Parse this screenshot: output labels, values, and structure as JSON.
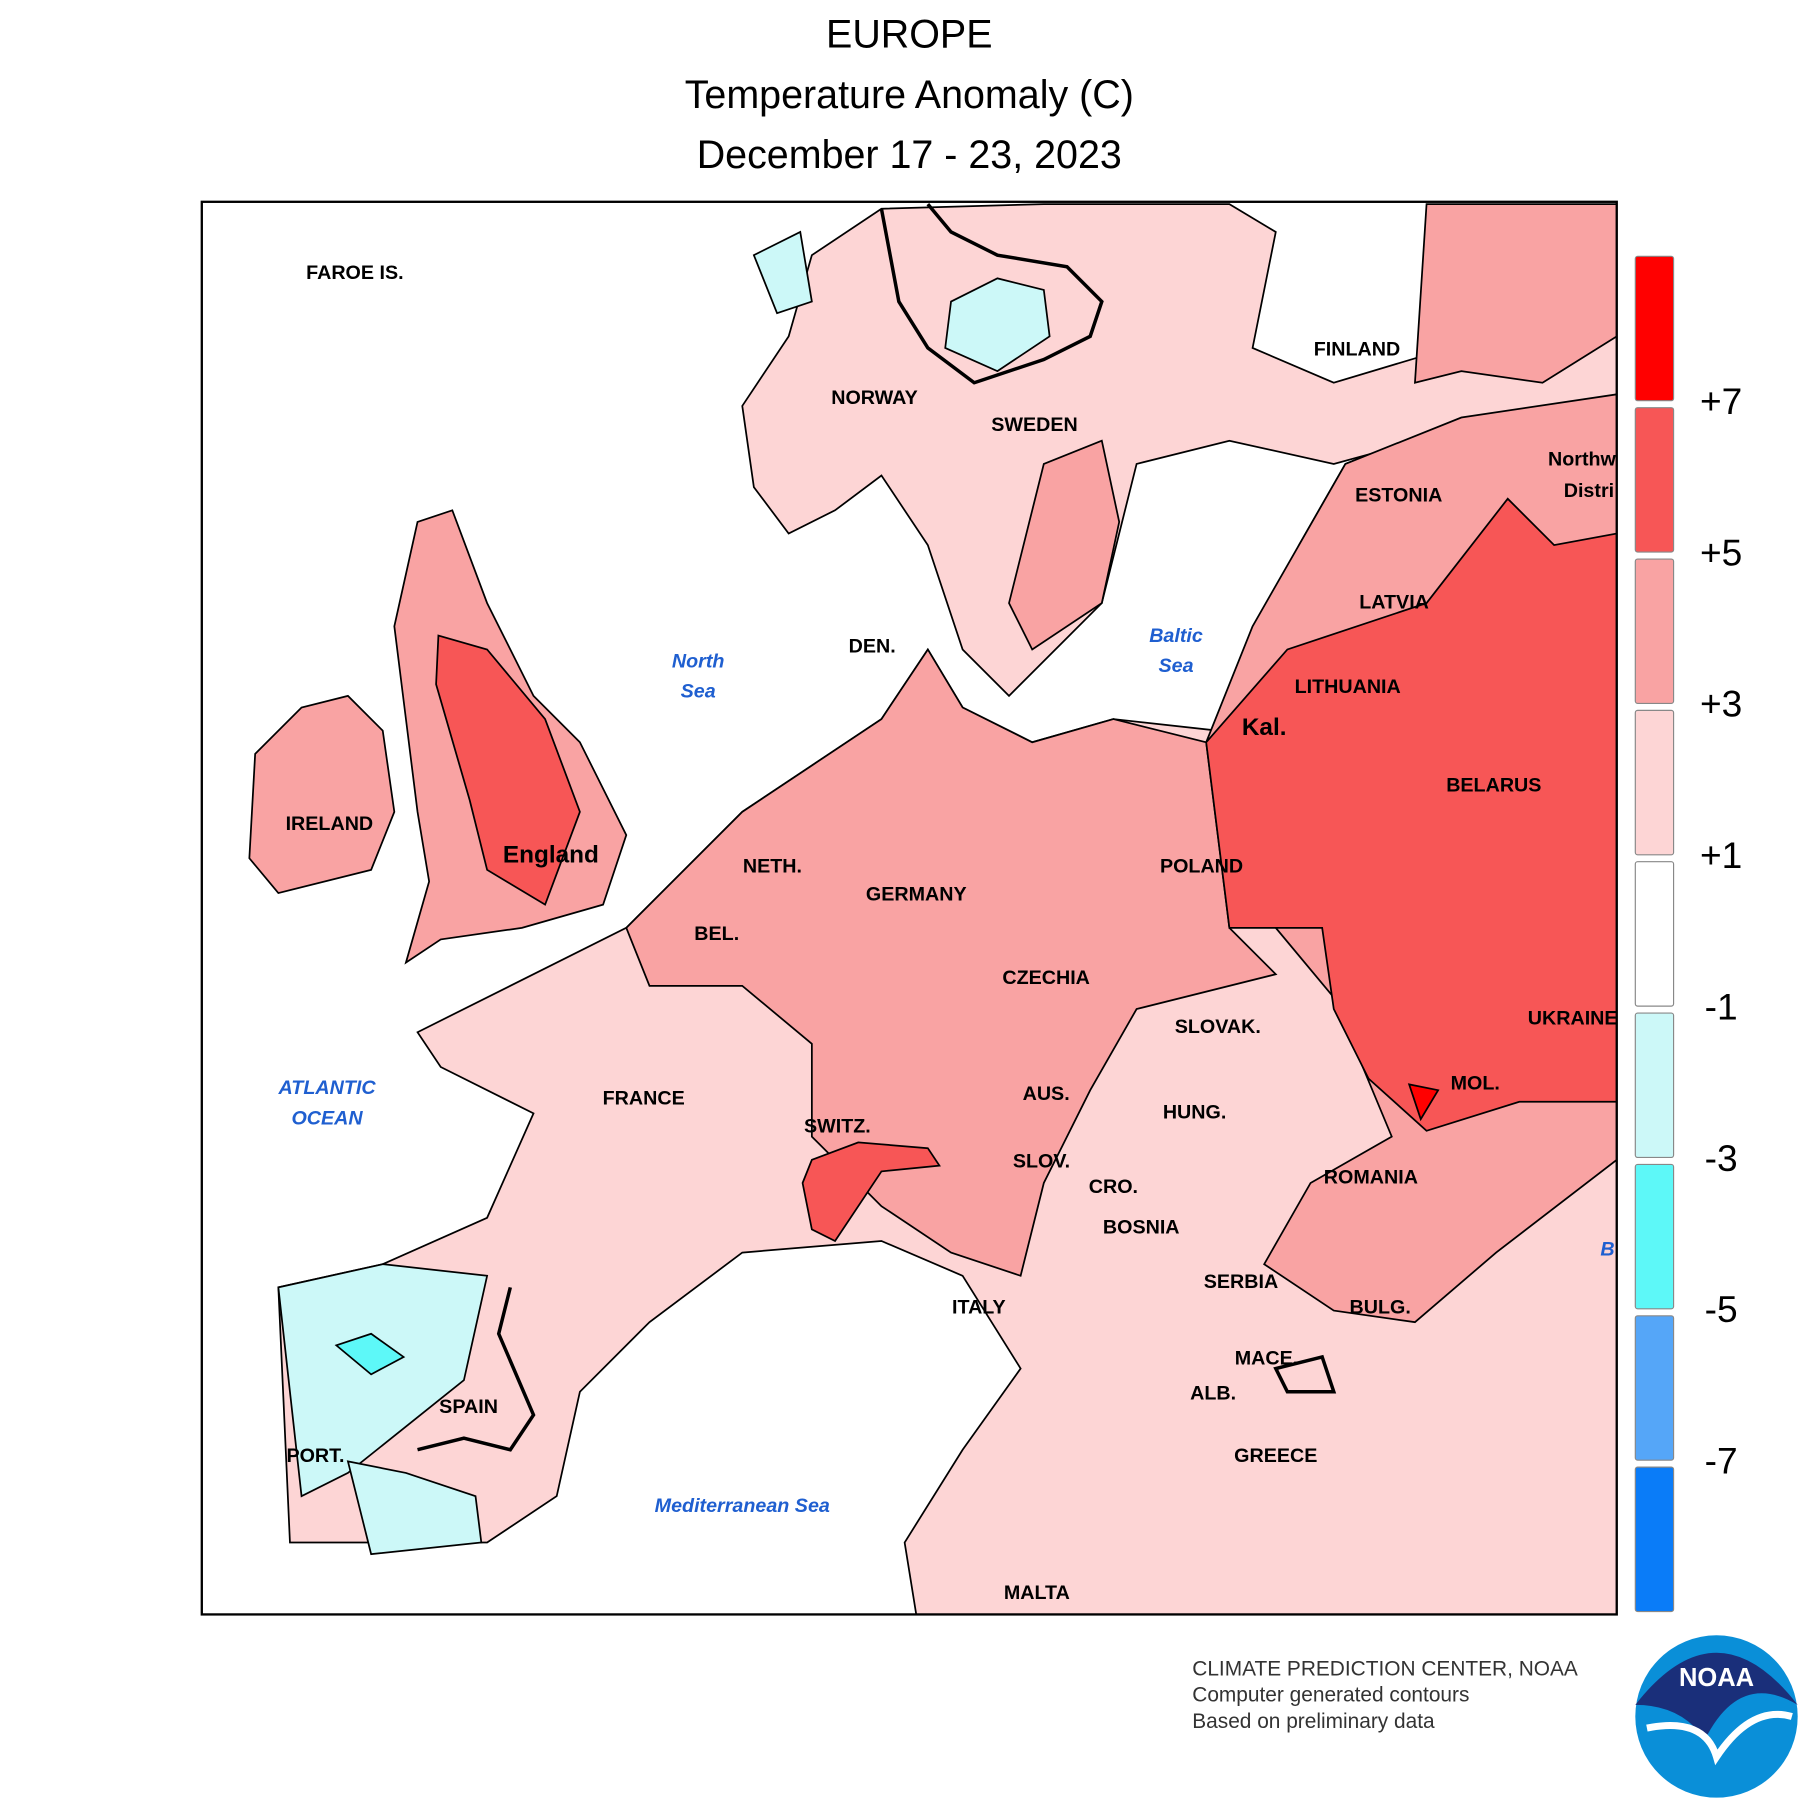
{
  "header": {
    "title": "EUROPE",
    "subtitle": "Temperature Anomaly (C)",
    "period": "December 17 - 23, 2023"
  },
  "map": {
    "labels": [
      {
        "text": "FAROE IS.",
        "kind": "country"
      },
      {
        "text": "NORWAY",
        "kind": "country"
      },
      {
        "text": "SWEDEN",
        "kind": "country"
      },
      {
        "text": "FINLAND",
        "kind": "country"
      },
      {
        "text": "ESTONIA",
        "kind": "country"
      },
      {
        "text": "Northw",
        "kind": "country"
      },
      {
        "text": "Distri",
        "kind": "country"
      },
      {
        "text": "LATVIA",
        "kind": "country"
      },
      {
        "text": "LITHUANIA",
        "kind": "country"
      },
      {
        "text": "Kal.",
        "kind": "major"
      },
      {
        "text": "BELARUS",
        "kind": "country"
      },
      {
        "text": "POLAND",
        "kind": "country"
      },
      {
        "text": "DEN.",
        "kind": "country"
      },
      {
        "text": "England",
        "kind": "major"
      },
      {
        "text": "IRELAND",
        "kind": "country"
      },
      {
        "text": "NETH.",
        "kind": "country"
      },
      {
        "text": "GERMANY",
        "kind": "country"
      },
      {
        "text": "BEL.",
        "kind": "country"
      },
      {
        "text": "CZECHIA",
        "kind": "country"
      },
      {
        "text": "SLOVAK.",
        "kind": "country"
      },
      {
        "text": "UKRAINE",
        "kind": "country"
      },
      {
        "text": "MOL.",
        "kind": "country"
      },
      {
        "text": "FRANCE",
        "kind": "country"
      },
      {
        "text": "AUS.",
        "kind": "country"
      },
      {
        "text": "HUNG.",
        "kind": "country"
      },
      {
        "text": "SWITZ.",
        "kind": "country"
      },
      {
        "text": "SLOV.",
        "kind": "country"
      },
      {
        "text": "CRO.",
        "kind": "country"
      },
      {
        "text": "ROMANIA",
        "kind": "country"
      },
      {
        "text": "BOSNIA",
        "kind": "country"
      },
      {
        "text": "SERBIA",
        "kind": "country"
      },
      {
        "text": "ITALY",
        "kind": "country"
      },
      {
        "text": "BULG.",
        "kind": "country"
      },
      {
        "text": "MACE.",
        "kind": "country"
      },
      {
        "text": "ALB.",
        "kind": "country"
      },
      {
        "text": "SPAIN",
        "kind": "country"
      },
      {
        "text": "PORT.",
        "kind": "country"
      },
      {
        "text": "GREECE",
        "kind": "country"
      },
      {
        "text": "MALTA",
        "kind": "country"
      },
      {
        "text": "North",
        "kind": "water"
      },
      {
        "text": "Sea",
        "kind": "water"
      },
      {
        "text": "Baltic",
        "kind": "water"
      },
      {
        "text": "Sea",
        "kind": "water"
      },
      {
        "text": "ATLANTIC",
        "kind": "water"
      },
      {
        "text": "OCEAN",
        "kind": "water"
      },
      {
        "text": "Mediterranean Sea",
        "kind": "water"
      },
      {
        "text": "B",
        "kind": "water"
      }
    ]
  },
  "legend": {
    "colors": [
      "#ff0000",
      "#f75656",
      "#f9a3a3",
      "#fdd5d5",
      "#ffffff",
      "#ccf8f8",
      "#5df8f8",
      "#55a6f8",
      "#0a7cf8"
    ],
    "labels": [
      "+7",
      "+5",
      "+3",
      "+1",
      "-1",
      "-3",
      "-5",
      "-7"
    ]
  },
  "footer": {
    "lines": [
      "CLIMATE PREDICTION CENTER, NOAA",
      "Computer generated contours",
      "Based on preliminary data"
    ],
    "logo": "NOAA"
  }
}
